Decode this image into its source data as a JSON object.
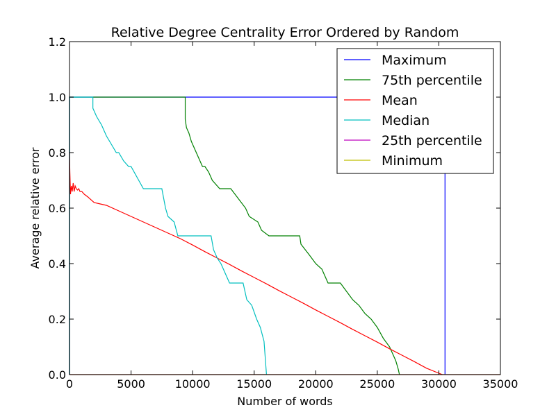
{
  "chart_data": {
    "type": "line",
    "title": "Relative Degree Centrality Error Ordered by Random",
    "xlabel": "Number of words",
    "ylabel": "Average relative error",
    "xlim": [
      0,
      35000
    ],
    "ylim": [
      0,
      1.2
    ],
    "xticks": [
      0,
      5000,
      10000,
      15000,
      20000,
      25000,
      30000,
      35000
    ],
    "xtick_labels": [
      "0",
      "5000",
      "10000",
      "15000",
      "20000",
      "25000",
      "30000",
      "35000"
    ],
    "yticks": [
      0.0,
      0.2,
      0.4,
      0.6,
      0.8,
      1.0,
      1.2
    ],
    "ytick_labels": [
      "0.0",
      "0.2",
      "0.4",
      "0.6",
      "0.8",
      "1.0",
      "1.2"
    ],
    "grid": false,
    "legend_position": "top-right",
    "series": [
      {
        "name": "Maximum",
        "color": "#0000ff",
        "step": true,
        "x": [
          0,
          0,
          30500,
          30500
        ],
        "y": [
          0.0,
          1.0,
          1.0,
          0.0
        ]
      },
      {
        "name": "75th percentile",
        "color": "#008000",
        "step": true,
        "x": [
          0,
          0,
          9400,
          9400,
          9500,
          9700,
          9900,
          10200,
          10500,
          10800,
          11000,
          11300,
          11600,
          12200,
          12600,
          13100,
          14300,
          14600,
          15300,
          15600,
          16200,
          16300,
          18700,
          18800,
          19500,
          20000,
          20500,
          21000,
          22000,
          22500,
          23000,
          23500,
          24000,
          24500,
          25000,
          25500,
          26000,
          26300,
          26500,
          26700,
          26800,
          26800
        ],
        "y": [
          0.0,
          1.0,
          1.0,
          0.92,
          0.89,
          0.87,
          0.84,
          0.81,
          0.78,
          0.75,
          0.75,
          0.73,
          0.7,
          0.67,
          0.67,
          0.67,
          0.6,
          0.57,
          0.55,
          0.52,
          0.5,
          0.5,
          0.5,
          0.47,
          0.43,
          0.4,
          0.38,
          0.33,
          0.33,
          0.3,
          0.27,
          0.25,
          0.22,
          0.2,
          0.17,
          0.13,
          0.1,
          0.07,
          0.05,
          0.02,
          0.0,
          0.0
        ]
      },
      {
        "name": "Mean",
        "color": "#ff0000",
        "step": false,
        "x": [
          0,
          30,
          80,
          150,
          220,
          300,
          380,
          460,
          550,
          650,
          750,
          850,
          1000,
          1200,
          1500,
          2000,
          2500,
          3000,
          4000,
          5000,
          6000,
          7000,
          8000,
          9000,
          10000,
          11000,
          12000,
          13000,
          14000,
          15000,
          16000,
          17000,
          18000,
          19000,
          20000,
          21000,
          22000,
          23000,
          24000,
          25000,
          26000,
          27000,
          28000,
          29000,
          30000,
          30300
        ],
        "y": [
          0.8,
          0.73,
          0.65,
          0.68,
          0.66,
          0.69,
          0.66,
          0.68,
          0.67,
          0.665,
          0.67,
          0.66,
          0.66,
          0.65,
          0.64,
          0.62,
          0.615,
          0.61,
          0.59,
          0.57,
          0.55,
          0.53,
          0.51,
          0.49,
          0.467,
          0.443,
          0.42,
          0.397,
          0.373,
          0.35,
          0.327,
          0.303,
          0.28,
          0.257,
          0.233,
          0.21,
          0.187,
          0.163,
          0.14,
          0.117,
          0.093,
          0.07,
          0.047,
          0.023,
          0.005,
          0.0
        ]
      },
      {
        "name": "Median",
        "color": "#00bfbf",
        "step": true,
        "x": [
          0,
          0,
          1900,
          1900,
          2200,
          2600,
          3000,
          3400,
          3800,
          4000,
          4400,
          4800,
          5000,
          5500,
          6000,
          6200,
          7500,
          7800,
          8000,
          8500,
          8800,
          9000,
          11500,
          11700,
          12000,
          12300,
          12600,
          13000,
          14100,
          14400,
          14800,
          15200,
          15500,
          15800,
          16000,
          16000
        ],
        "y": [
          0.0,
          1.0,
          1.0,
          0.96,
          0.93,
          0.9,
          0.86,
          0.83,
          0.8,
          0.8,
          0.77,
          0.75,
          0.75,
          0.71,
          0.67,
          0.67,
          0.67,
          0.6,
          0.57,
          0.55,
          0.5,
          0.5,
          0.5,
          0.45,
          0.42,
          0.4,
          0.37,
          0.33,
          0.33,
          0.27,
          0.25,
          0.2,
          0.17,
          0.12,
          0.0,
          0.0
        ]
      },
      {
        "name": "25th percentile",
        "color": "#bf00bf",
        "step": false,
        "x": [
          0,
          0,
          35000
        ],
        "y": [
          0.0,
          0.0,
          0.0
        ]
      },
      {
        "name": "Minimum",
        "color": "#bfbf00",
        "step": false,
        "x": [
          0,
          35000
        ],
        "y": [
          0.0,
          0.0
        ]
      }
    ]
  }
}
